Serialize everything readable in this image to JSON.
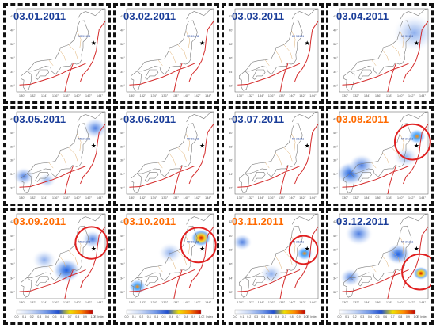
{
  "colors": {
    "normal_date": "#1a3d99",
    "alert_date": "#ff6a00",
    "fault_line": "#d42a2a",
    "highlight_circle": "#e02020",
    "coast": "#7a7a7a",
    "prefecture": "#e0b070"
  },
  "panels": [
    {
      "date": "03.01.2011",
      "alert": false,
      "circle": false,
      "blobs": []
    },
    {
      "date": "03.02.2011",
      "alert": false,
      "circle": false,
      "blobs": []
    },
    {
      "date": "03.03.2011",
      "alert": false,
      "circle": false,
      "blobs": []
    },
    {
      "date": "03.04.2011",
      "alert": false,
      "circle": false,
      "blobs": [
        {
          "lon": 142.5,
          "lat": 39.5,
          "r": 0.25,
          "v": 0.35
        }
      ]
    },
    {
      "date": "03.05.2011",
      "alert": false,
      "circle": false,
      "blobs": [
        {
          "lon": 130.3,
          "lat": 33.6,
          "r": 0.12,
          "v": 0.5
        },
        {
          "lon": 143.2,
          "lat": 40.6,
          "r": 0.14,
          "v": 0.4
        },
        {
          "lon": 134.5,
          "lat": 33.0,
          "r": 0.1,
          "v": 0.3
        }
      ]
    },
    {
      "date": "03.06.2011",
      "alert": false,
      "circle": false,
      "blobs": []
    },
    {
      "date": "03.07.2011",
      "alert": false,
      "circle": false,
      "blobs": []
    },
    {
      "date": "03.08.2011",
      "alert": true,
      "circle": true,
      "circle_at": {
        "lon": 142.2,
        "lat": 38.6,
        "r": 0.2
      },
      "blobs": [
        {
          "lon": 143.0,
          "lat": 39.4,
          "r": 0.1,
          "v": 0.9
        },
        {
          "lon": 131.0,
          "lat": 34.0,
          "r": 0.16,
          "v": 0.6
        },
        {
          "lon": 133.0,
          "lat": 35.2,
          "r": 0.15,
          "v": 0.4
        },
        {
          "lon": 141.0,
          "lat": 36.4,
          "r": 0.14,
          "v": 0.35
        }
      ]
    },
    {
      "date": "03.09.2011",
      "alert": true,
      "circle": true,
      "circle_at": {
        "lon": 142.5,
        "lat": 38.9,
        "r": 0.18
      },
      "blobs": [
        {
          "lon": 138.0,
          "lat": 35.0,
          "r": 0.16,
          "v": 0.7
        },
        {
          "lon": 142.7,
          "lat": 39.4,
          "r": 0.12,
          "v": 0.4
        },
        {
          "lon": 134.0,
          "lat": 36.5,
          "r": 0.14,
          "v": 0.3
        }
      ]
    },
    {
      "date": "03.10.2011",
      "alert": true,
      "circle": true,
      "circle_at": {
        "lon": 142.2,
        "lat": 38.6,
        "r": 0.2
      },
      "blobs": [
        {
          "lon": 142.7,
          "lat": 39.6,
          "r": 0.12,
          "v": 1.0
        },
        {
          "lon": 131.0,
          "lat": 32.7,
          "r": 0.1,
          "v": 0.85
        },
        {
          "lon": 137.0,
          "lat": 37.5,
          "r": 0.14,
          "v": 0.35
        }
      ]
    },
    {
      "date": "03.11.2011",
      "alert": true,
      "circle": true,
      "circle_at": {
        "lon": 142.2,
        "lat": 37.9,
        "r": 0.17
      },
      "blobs": [
        {
          "lon": 142.4,
          "lat": 37.4,
          "r": 0.1,
          "v": 0.85
        },
        {
          "lon": 130.4,
          "lat": 39.0,
          "r": 0.12,
          "v": 0.45
        },
        {
          "lon": 136.0,
          "lat": 34.5,
          "r": 0.14,
          "v": 0.35
        }
      ]
    },
    {
      "date": "03.12.2011",
      "alert": false,
      "circle": true,
      "circle_at": {
        "lon": 143.5,
        "lat": 34.8,
        "r": 0.2
      },
      "blobs": [
        {
          "lon": 143.7,
          "lat": 34.6,
          "r": 0.09,
          "v": 1.0
        },
        {
          "lon": 132.5,
          "lat": 40.2,
          "r": 0.16,
          "v": 0.55
        },
        {
          "lon": 139.6,
          "lat": 37.3,
          "r": 0.14,
          "v": 0.7
        },
        {
          "lon": 131.0,
          "lat": 34.0,
          "r": 0.12,
          "v": 0.4
        }
      ]
    }
  ],
  "axes": {
    "lon_ticks": [
      "130°",
      "132°",
      "134°",
      "136°",
      "138°",
      "140°",
      "142°",
      "144°"
    ],
    "lat_ticks": [
      "32°",
      "34°",
      "36°",
      "38°",
      "40°",
      "42°"
    ],
    "lon_range": [
      129,
      145
    ],
    "lat_range": [
      31,
      43
    ]
  },
  "colorbar": {
    "ticks": [
      "0.0",
      "0.1",
      "0.2",
      "0.3",
      "0.4",
      "0.5",
      "0.6",
      "0.7",
      "0.8",
      "0.9",
      "1.0"
    ],
    "label": "E_Index"
  },
  "epicenter_label": "M9 3/11/11"
}
